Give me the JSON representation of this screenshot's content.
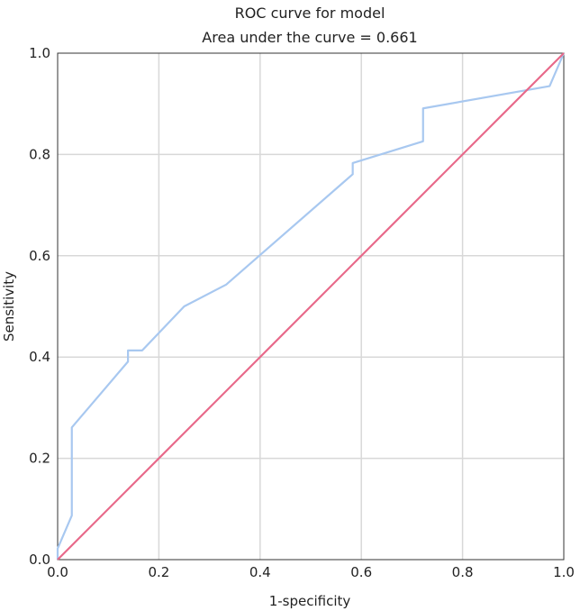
{
  "chart_data": {
    "type": "line",
    "title": "ROC curve for model",
    "subtitle": "Area under the curve = 0.661",
    "xlabel": "1-specificity",
    "ylabel": "Sensitivity",
    "xlim": [
      0,
      1
    ],
    "ylim": [
      0,
      1
    ],
    "xticks": [
      "0.0",
      "0.2",
      "0.4",
      "0.6",
      "0.8",
      "1.0"
    ],
    "yticks": [
      "0.0",
      "0.2",
      "0.4",
      "0.6",
      "0.8",
      "1.0"
    ],
    "grid": true,
    "legend": "none",
    "series": [
      {
        "color": "#a8c8f0",
        "x": [
          0,
          0,
          0.028,
          0.028,
          0.139,
          0.139,
          0.167,
          0.25,
          0.333,
          0.583,
          0.583,
          0.722,
          0.722,
          0.972,
          1.0
        ],
        "y": [
          0,
          0.022,
          0.087,
          0.261,
          0.391,
          0.413,
          0.413,
          0.5,
          0.543,
          0.761,
          0.783,
          0.826,
          0.891,
          0.935,
          1.0
        ]
      },
      {
        "color": "#e8698a",
        "x": [
          0,
          1
        ],
        "y": [
          0,
          1
        ]
      }
    ]
  }
}
